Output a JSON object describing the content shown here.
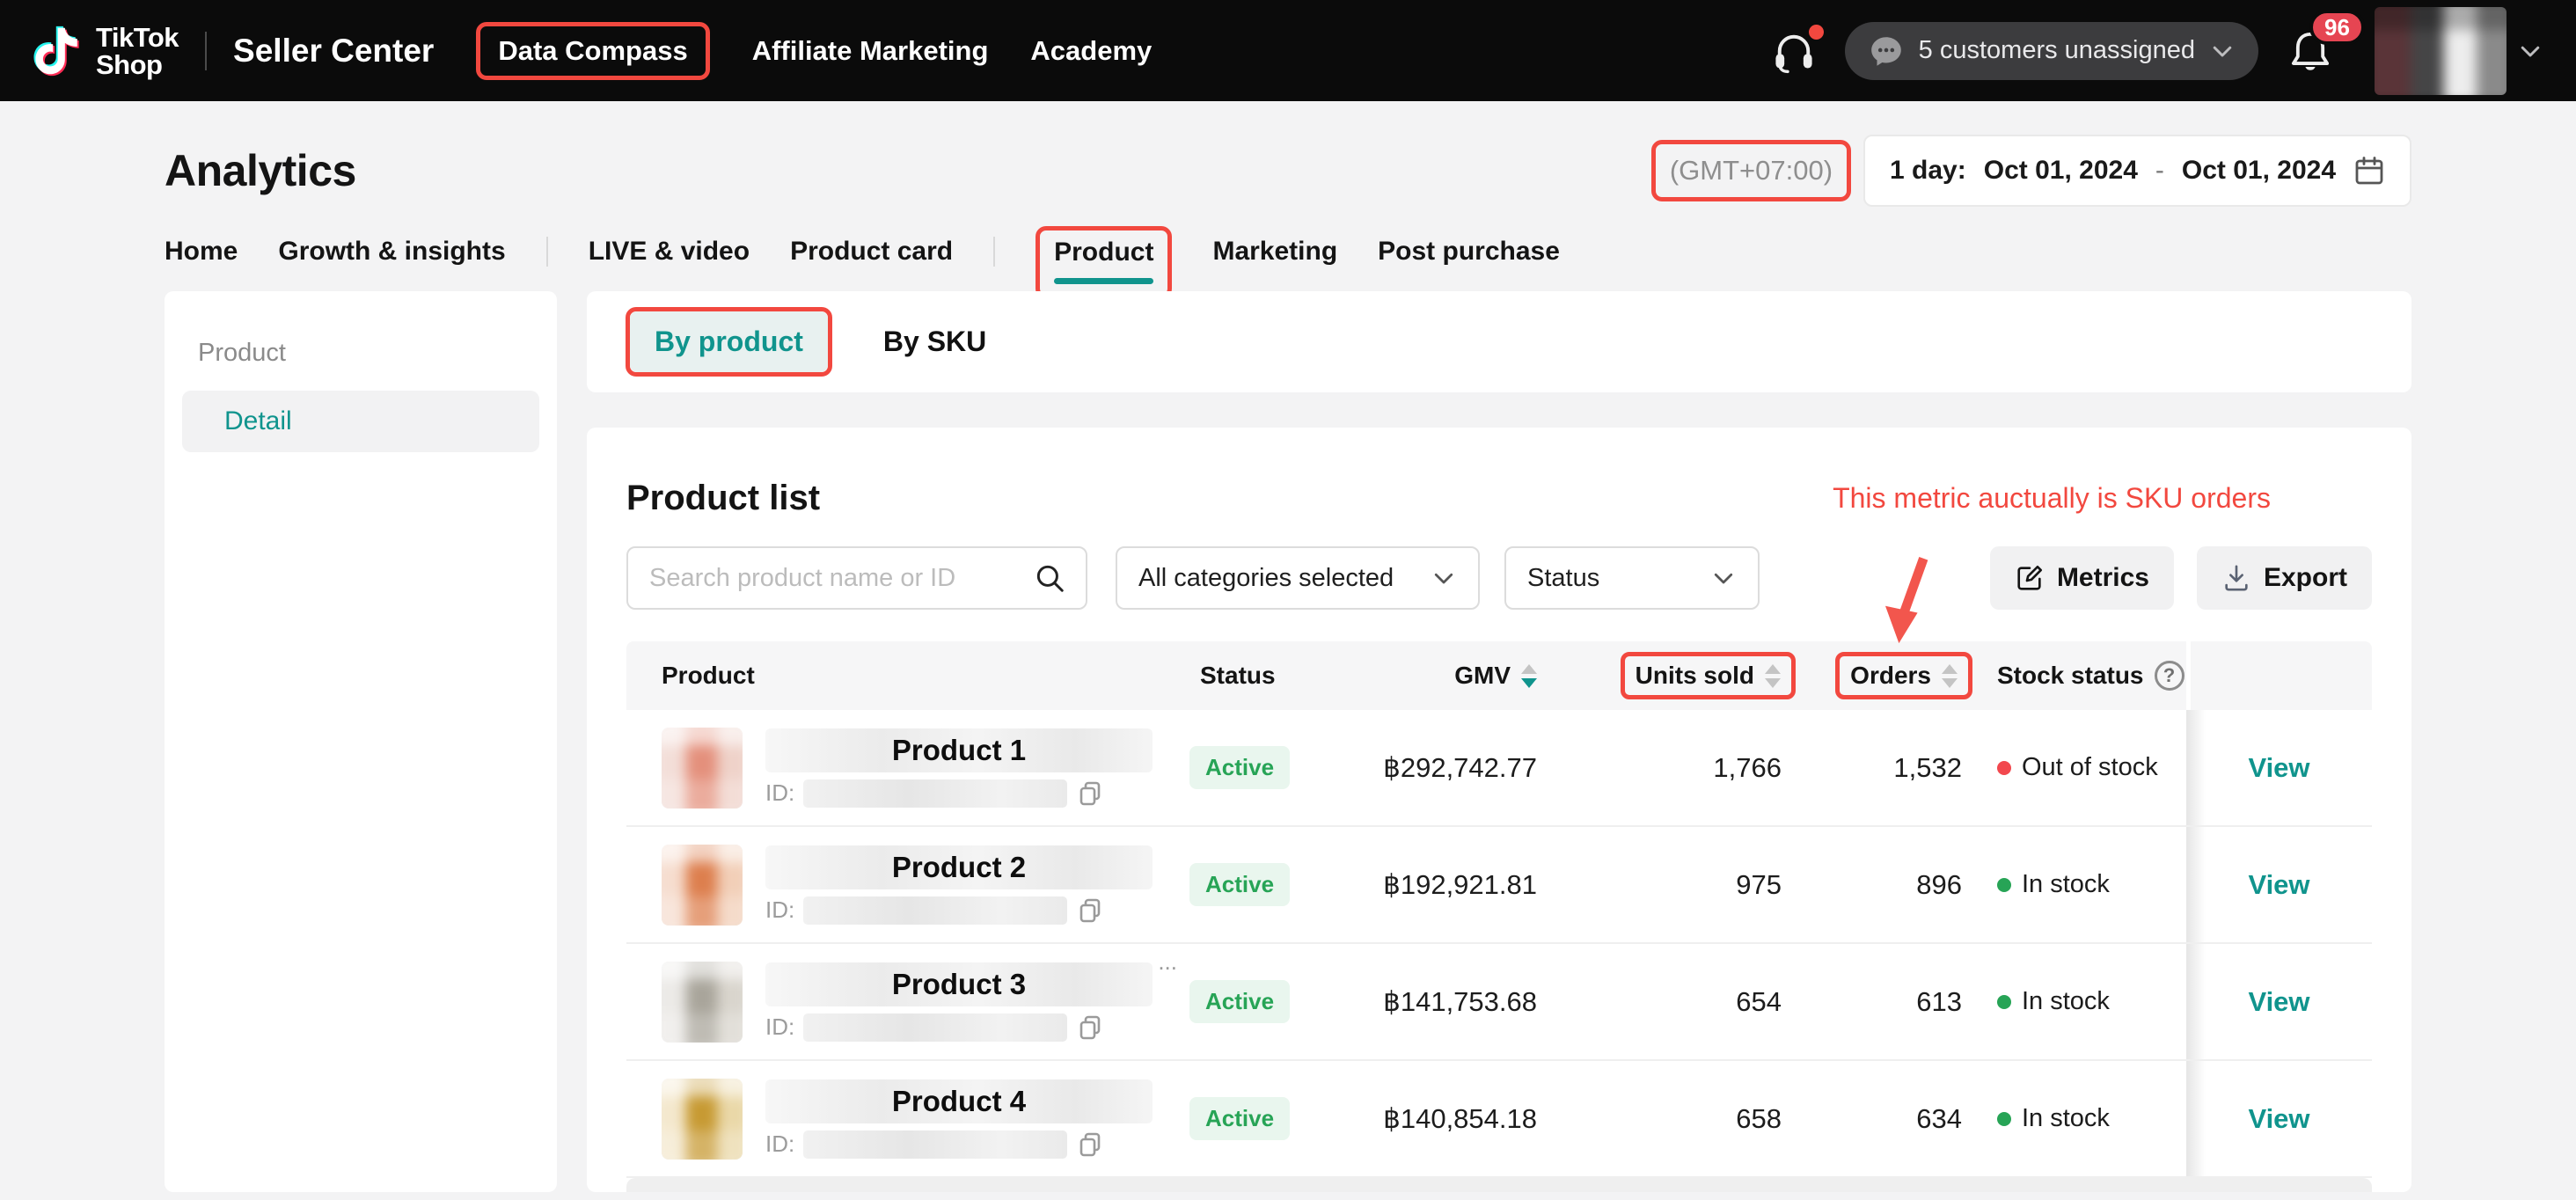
{
  "header": {
    "logo": {
      "line1": "TikTok",
      "line2": "Shop"
    },
    "nav": [
      {
        "label": "Seller Center",
        "emphasis": true
      },
      {
        "label": "Data Compass",
        "annotated": true
      },
      {
        "label": "Affiliate Marketing"
      },
      {
        "label": "Academy"
      }
    ],
    "right": {
      "assign_pill": "5 customers unassigned",
      "notification_count": "96"
    }
  },
  "page": {
    "title": "Analytics",
    "timezone": "(GMT+07:00)",
    "date_range": {
      "label": "1 day:",
      "start": "Oct 01, 2024",
      "separator": "-",
      "end": "Oct 01, 2024"
    }
  },
  "tabs": [
    {
      "label": "Home"
    },
    {
      "label": "Growth & insights",
      "divider_after": true
    },
    {
      "label": "LIVE & video"
    },
    {
      "label": "Product card",
      "divider_after": true
    },
    {
      "label": "Product",
      "active": true,
      "annotated": true
    },
    {
      "label": "Marketing"
    },
    {
      "label": "Post purchase"
    }
  ],
  "sidebar": {
    "section_label": "Product",
    "items": [
      {
        "label": "Detail",
        "active": true
      }
    ]
  },
  "subtabs": {
    "by_product": "By product",
    "by_sku": "By SKU"
  },
  "product_list": {
    "title": "Product list",
    "annotation_note": "This metric auctually is SKU orders",
    "search_placeholder": "Search product name or ID",
    "category_filter": "All categories selected",
    "status_filter": "Status",
    "metrics_button": "Metrics",
    "export_button": "Export"
  },
  "table": {
    "columns": [
      {
        "label": "Product"
      },
      {
        "label": "Status"
      },
      {
        "label": "GMV",
        "sortable": true,
        "sort": "desc"
      },
      {
        "label": "Units sold",
        "sortable": true,
        "annotated": true
      },
      {
        "label": "Orders",
        "sortable": true,
        "annotated": true
      },
      {
        "label": "Stock status",
        "help": true
      },
      {
        "label": ""
      }
    ],
    "rows": [
      {
        "name_label": "Product 1",
        "id_label": "ID:",
        "ellipsis": "",
        "status": "Active",
        "gmv": "฿292,742.77",
        "units_sold": "1,766",
        "orders": "1,532",
        "stock_status": "Out of stock",
        "stock_state": "out",
        "action": "View",
        "thumb_colors": [
          "#f3ded8",
          "#e4907c",
          "#efd2c9"
        ]
      },
      {
        "name_label": "Product 2",
        "id_label": "ID:",
        "ellipsis": "",
        "status": "Active",
        "gmv": "฿192,921.81",
        "units_sold": "975",
        "orders": "896",
        "stock_status": "In stock",
        "stock_state": "in",
        "action": "View",
        "thumb_colors": [
          "#f6ddcf",
          "#dd7f4e",
          "#f2cfb8"
        ]
      },
      {
        "name_label": "Product 3",
        "id_label": "ID:",
        "ellipsis": "...",
        "status": "Active",
        "gmv": "฿141,753.68",
        "units_sold": "654",
        "orders": "613",
        "stock_status": "In stock",
        "stock_state": "in",
        "action": "View",
        "thumb_colors": [
          "#eceae7",
          "#a9a59b",
          "#d9d5cd"
        ]
      },
      {
        "name_label": "Product 4",
        "id_label": "ID:",
        "ellipsis": "",
        "status": "Active",
        "gmv": "฿140,854.18",
        "units_sold": "658",
        "orders": "634",
        "stock_status": "In stock",
        "stock_state": "in",
        "action": "View",
        "thumb_colors": [
          "#f4e8cd",
          "#c79a33",
          "#ead8a8"
        ]
      }
    ]
  },
  "colors": {
    "accent": "#10948d",
    "annotation_red": "#f2483f",
    "green": "#27a456",
    "out_of_stock_red": "#f2484e"
  }
}
